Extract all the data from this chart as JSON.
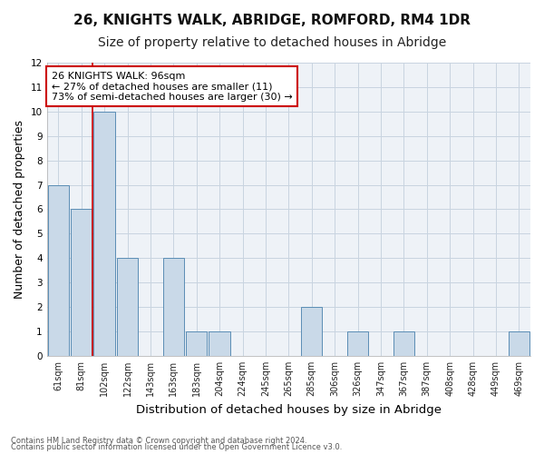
{
  "title": "26, KNIGHTS WALK, ABRIDGE, ROMFORD, RM4 1DR",
  "subtitle": "Size of property relative to detached houses in Abridge",
  "xlabel": "Distribution of detached houses by size in Abridge",
  "ylabel": "Number of detached properties",
  "categories": [
    "61sqm",
    "81sqm",
    "102sqm",
    "122sqm",
    "143sqm",
    "163sqm",
    "183sqm",
    "204sqm",
    "224sqm",
    "245sqm",
    "265sqm",
    "285sqm",
    "306sqm",
    "326sqm",
    "347sqm",
    "367sqm",
    "387sqm",
    "408sqm",
    "428sqm",
    "449sqm",
    "469sqm"
  ],
  "values": [
    7,
    6,
    10,
    4,
    0,
    4,
    1,
    1,
    0,
    0,
    0,
    2,
    0,
    1,
    0,
    1,
    0,
    0,
    0,
    0,
    1
  ],
  "bar_color": "#c9d9e8",
  "bar_edge_color": "#5a8db5",
  "property_line_x": 1.5,
  "annotation_text": "26 KNIGHTS WALK: 96sqm\n← 27% of detached houses are smaller (11)\n73% of semi-detached houses are larger (30) →",
  "annotation_box_color": "white",
  "annotation_box_edge": "#cc0000",
  "red_line_color": "#cc0000",
  "ylim": [
    0,
    12
  ],
  "yticks": [
    0,
    1,
    2,
    3,
    4,
    5,
    6,
    7,
    8,
    9,
    10,
    11,
    12
  ],
  "footnote1": "Contains HM Land Registry data © Crown copyright and database right 2024.",
  "footnote2": "Contains public sector information licensed under the Open Government Licence v3.0.",
  "bg_color": "#eef2f7",
  "grid_color": "#c8d4e0",
  "title_fontsize": 11,
  "subtitle_fontsize": 10,
  "axis_label_fontsize": 9,
  "tick_fontsize": 7,
  "annotation_fontsize": 8,
  "footnote_fontsize": 6
}
